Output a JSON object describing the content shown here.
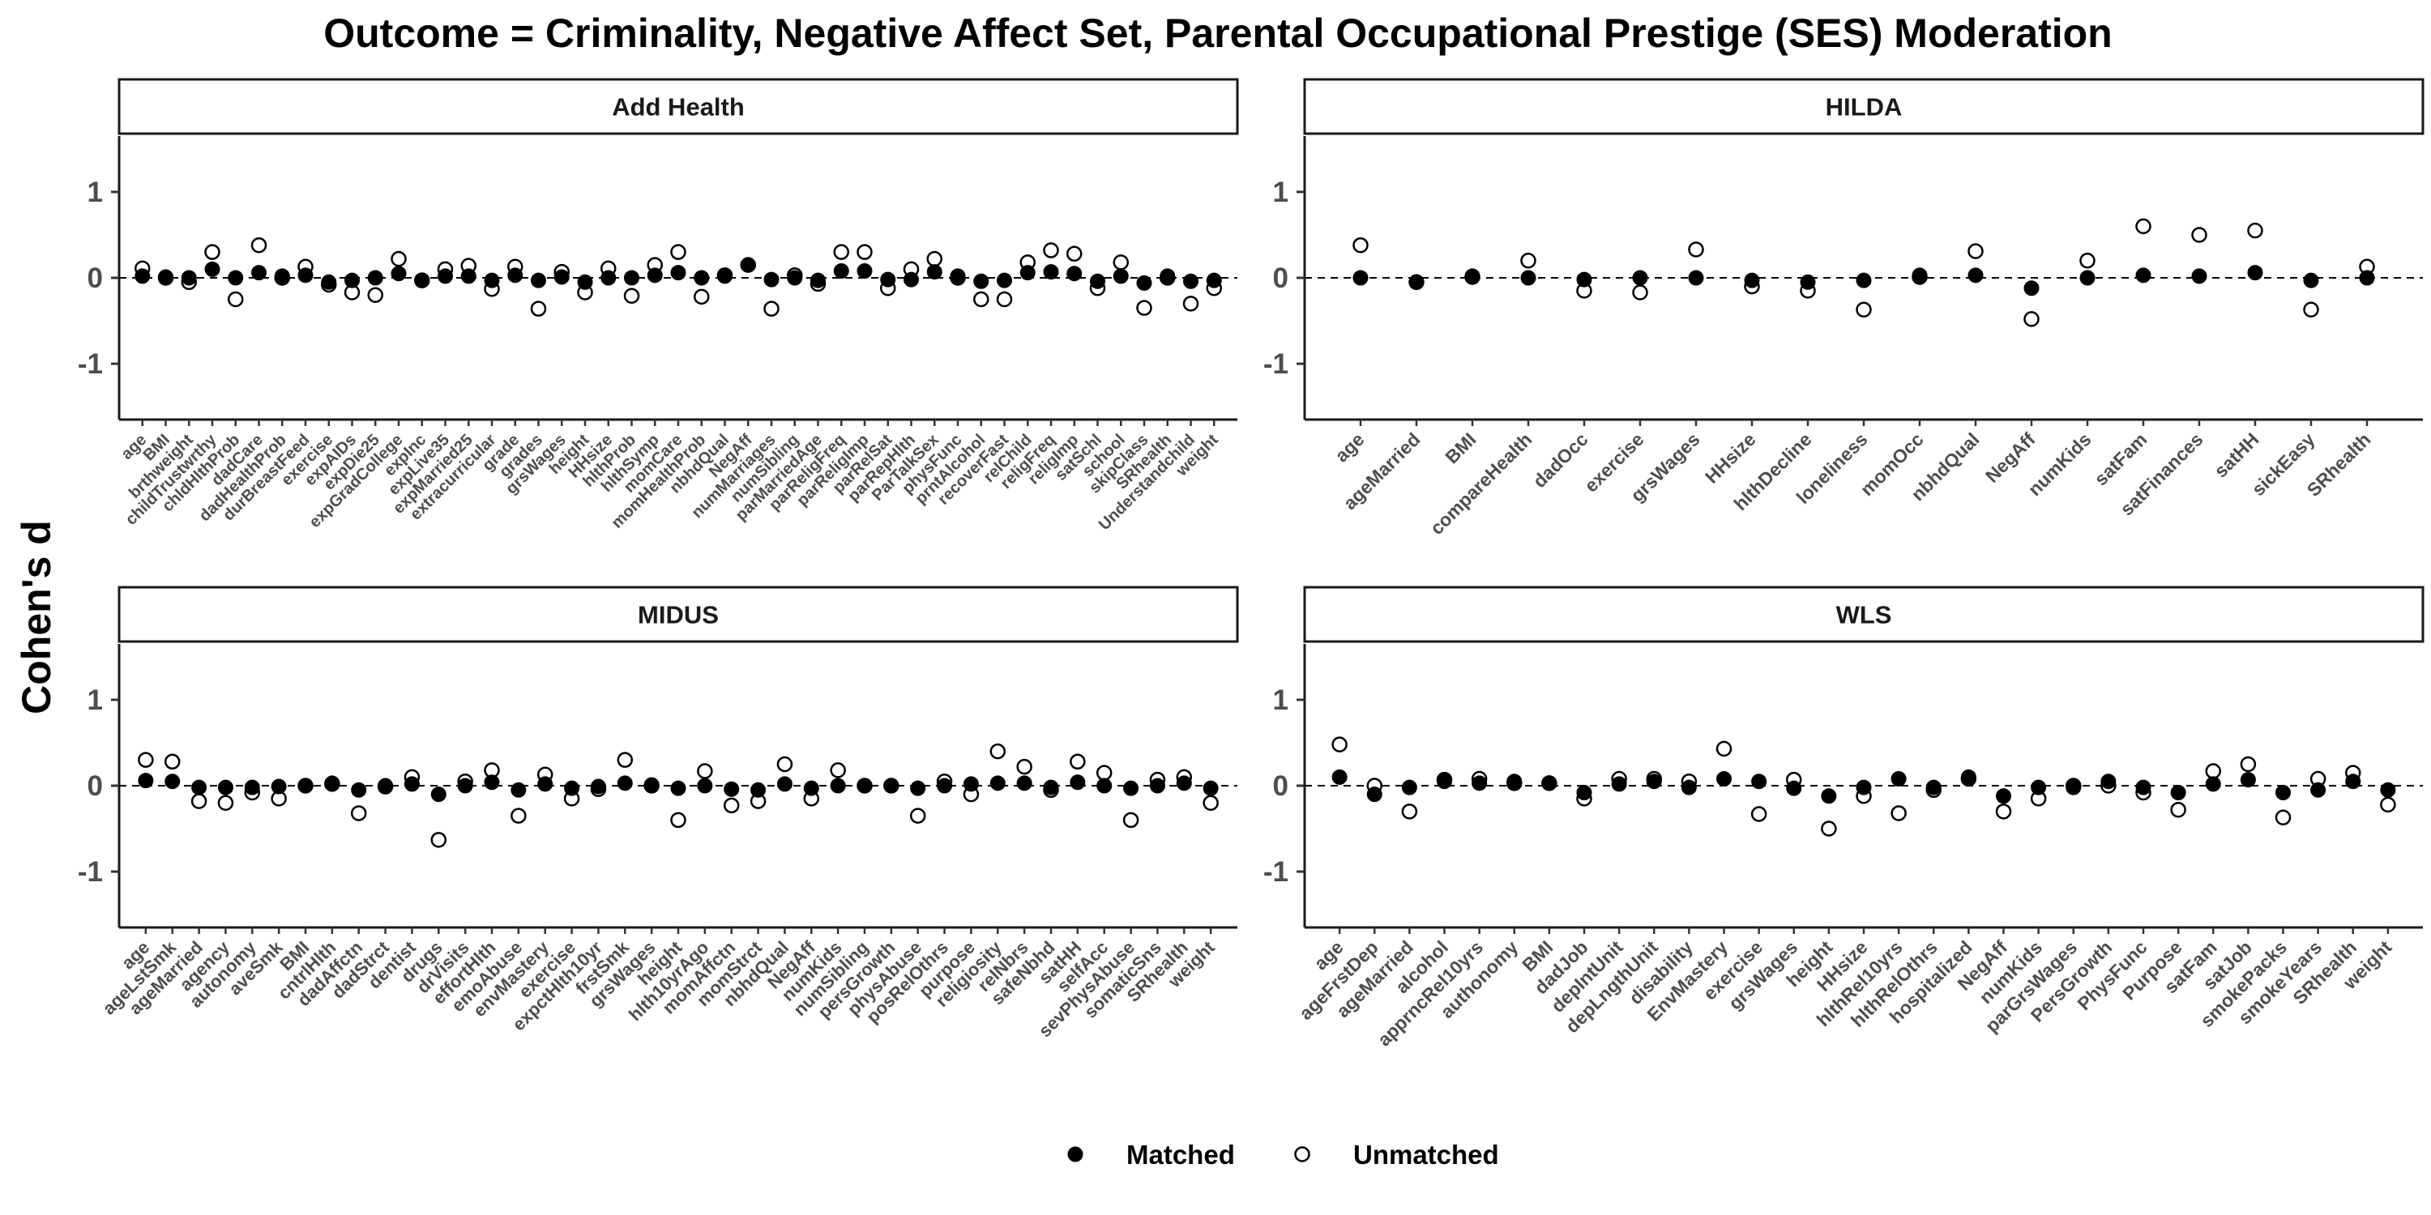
{
  "chart_data": {
    "type": "scatter",
    "title": "Outcome = Criminality, Negative Affect Set, Parental Occupational Prestige (SES) Moderation",
    "ylabel": "Cohen's d",
    "xlabel": "",
    "ylim": [
      -1.65,
      1.65
    ],
    "yticks": [
      -1,
      0,
      1
    ],
    "reference_line": 0,
    "grid": false,
    "legend": {
      "position": "bottom",
      "entries": [
        {
          "name": "Matched",
          "marker": "filled-circle"
        },
        {
          "name": "Unmatched",
          "marker": "open-circle"
        }
      ]
    },
    "panels": [
      {
        "name": "Add Health",
        "categories": [
          "age",
          "BMI",
          "brthweight",
          "childTrustwrthy",
          "chldHlthProb",
          "dadCare",
          "dadHealthProb",
          "durBreastFeed",
          "exercise",
          "expAIDs",
          "expDie25",
          "expGradCollege",
          "expInc",
          "expLive35",
          "expMarried25",
          "extracurricular",
          "grade",
          "grades",
          "grsWages",
          "height",
          "HHsize",
          "hlthProb",
          "hlthSymp",
          "momCare",
          "momHealthProb",
          "nbhdQual",
          "NegAff",
          "numMarriages",
          "numSibling",
          "parMarriedAge",
          "parReligFreq",
          "parReligImp",
          "parRelSat",
          "parRepHlth",
          "ParTalkSex",
          "physFunc",
          "prntAlcohol",
          "recoverFast",
          "relChild",
          "religFreq",
          "religImp",
          "satSchl",
          "school",
          "skipClass",
          "SRhealth",
          "Understandchild",
          "weight"
        ],
        "series": [
          {
            "name": "Matched",
            "values": [
              0.02,
              0.01,
              0.0,
              0.1,
              0.0,
              0.06,
              0.02,
              0.03,
              -0.05,
              -0.03,
              0.0,
              0.05,
              -0.03,
              0.02,
              0.02,
              -0.03,
              0.03,
              -0.03,
              0.01,
              -0.05,
              0.0,
              0.0,
              0.03,
              0.06,
              0.0,
              0.02,
              0.15,
              -0.02,
              0.0,
              -0.03,
              0.08,
              0.08,
              -0.02,
              -0.02,
              0.07,
              0.02,
              -0.04,
              -0.03,
              0.06,
              0.07,
              0.05,
              -0.04,
              0.02,
              -0.06,
              0.02,
              -0.04,
              -0.03
            ]
          },
          {
            "name": "Unmatched",
            "values": [
              0.11,
              0.0,
              -0.05,
              0.3,
              -0.25,
              0.38,
              0.0,
              0.13,
              -0.08,
              -0.17,
              -0.2,
              0.22,
              -0.03,
              0.1,
              0.14,
              -0.13,
              0.13,
              -0.36,
              0.07,
              -0.17,
              0.11,
              -0.21,
              0.15,
              0.3,
              -0.22,
              0.03,
              0.15,
              -0.36,
              0.03,
              -0.07,
              0.3,
              0.3,
              -0.12,
              0.1,
              0.22,
              0.0,
              -0.25,
              -0.25,
              0.18,
              0.32,
              0.28,
              -0.12,
              0.18,
              -0.35,
              0.0,
              -0.3,
              -0.12
            ]
          }
        ]
      },
      {
        "name": "HILDA",
        "categories": [
          "age",
          "ageMarried",
          "BMI",
          "compareHealth",
          "dadOcc",
          "exercise",
          "grsWages",
          "HHsize",
          "hlthDecline",
          "loneliness",
          "momOcc",
          "nbhdQual",
          "NegAff",
          "numKids",
          "satFam",
          "satFinances",
          "satHH",
          "sickEasy",
          "SRhealth"
        ],
        "series": [
          {
            "name": "Matched",
            "values": [
              0.0,
              -0.05,
              0.02,
              0.0,
              -0.02,
              0.0,
              0.0,
              -0.03,
              -0.05,
              -0.03,
              0.03,
              0.03,
              -0.12,
              0.0,
              0.03,
              0.02,
              0.06,
              -0.03,
              0.0
            ]
          },
          {
            "name": "Unmatched",
            "values": [
              0.38,
              -0.05,
              0.01,
              0.2,
              -0.15,
              -0.17,
              0.33,
              -0.1,
              -0.15,
              -0.37,
              0.01,
              0.31,
              -0.48,
              0.2,
              0.6,
              0.5,
              0.55,
              -0.37,
              0.13
            ]
          }
        ]
      },
      {
        "name": "MIDUS",
        "categories": [
          "age",
          "ageLstSmk",
          "ageMarried",
          "agency",
          "autonomy",
          "aveSmk",
          "BMI",
          "cntrlHlth",
          "dadAffctn",
          "dadStrct",
          "dentist",
          "drugs",
          "drVisits",
          "effortHlth",
          "emoAbuse",
          "envMastery",
          "exercise",
          "expctHlth10yr",
          "frstSmk",
          "grsWages",
          "height",
          "hlth10yrAgo",
          "momAffctn",
          "momStrct",
          "nbhdQual",
          "NegAff",
          "numKids",
          "numSibling",
          "persGrowth",
          "physAbuse",
          "posRelOthrs",
          "purpose",
          "religiosity",
          "relNbrs",
          "safeNbhd",
          "satHH",
          "selfAcc",
          "sevPhysAbuse",
          "somaticSns",
          "SRhealth",
          "weight"
        ],
        "series": [
          {
            "name": "Matched",
            "values": [
              0.06,
              0.05,
              -0.02,
              -0.02,
              -0.02,
              -0.01,
              0.0,
              0.03,
              -0.05,
              0.0,
              0.02,
              -0.1,
              0.0,
              0.04,
              -0.05,
              0.02,
              -0.03,
              -0.01,
              0.03,
              0.01,
              -0.03,
              0.0,
              -0.04,
              -0.05,
              0.02,
              -0.03,
              0.0,
              0.0,
              0.0,
              -0.03,
              0.0,
              0.02,
              0.03,
              0.03,
              -0.02,
              0.04,
              0.0,
              -0.03,
              0.0,
              0.03,
              -0.03
            ]
          },
          {
            "name": "Unmatched",
            "values": [
              0.3,
              0.28,
              -0.18,
              -0.2,
              -0.08,
              -0.15,
              0.0,
              0.02,
              -0.32,
              -0.01,
              0.1,
              -0.63,
              0.05,
              0.18,
              -0.35,
              0.13,
              -0.15,
              -0.04,
              0.3,
              0.0,
              -0.4,
              0.17,
              -0.23,
              -0.18,
              0.25,
              -0.15,
              0.18,
              0.0,
              0.0,
              -0.35,
              0.05,
              -0.1,
              0.4,
              0.22,
              -0.05,
              0.28,
              0.15,
              -0.4,
              0.07,
              0.1,
              -0.2
            ]
          }
        ]
      },
      {
        "name": "WLS",
        "categories": [
          "age",
          "ageFrstDep",
          "ageMarried",
          "alcohol",
          "apprncRel10yrs",
          "authonomy",
          "BMI",
          "dadJob",
          "depIntUnit",
          "depLngthUnit",
          "disability",
          "EnvMastery",
          "exercise",
          "grsWages",
          "height",
          "HHsize",
          "hlthRel10yrs",
          "hlthRelOthrs",
          "hospitalized",
          "NegAff",
          "numKids",
          "parGrsWages",
          "PersGrowth",
          "PhysFunc",
          "Purpose",
          "satFam",
          "satJob",
          "smokePacks",
          "smokeYears",
          "SRhealth",
          "weight"
        ],
        "series": [
          {
            "name": "Matched",
            "values": [
              0.1,
              -0.1,
              -0.02,
              0.05,
              0.03,
              0.05,
              0.03,
              -0.08,
              0.02,
              0.05,
              -0.02,
              0.08,
              0.05,
              -0.03,
              -0.12,
              -0.02,
              0.08,
              -0.02,
              0.1,
              -0.12,
              -0.02,
              -0.02,
              0.05,
              -0.02,
              -0.08,
              0.02,
              0.07,
              -0.08,
              -0.05,
              0.05,
              -0.05
            ]
          },
          {
            "name": "Unmatched",
            "values": [
              0.48,
              0.0,
              -0.3,
              0.07,
              0.08,
              0.03,
              0.03,
              -0.15,
              0.08,
              0.08,
              0.05,
              0.43,
              -0.33,
              0.07,
              -0.5,
              -0.12,
              -0.32,
              -0.05,
              0.08,
              -0.3,
              -0.15,
              0.0,
              0.0,
              -0.08,
              -0.28,
              0.17,
              0.25,
              -0.37,
              0.08,
              0.15,
              -0.22
            ]
          }
        ]
      }
    ]
  }
}
